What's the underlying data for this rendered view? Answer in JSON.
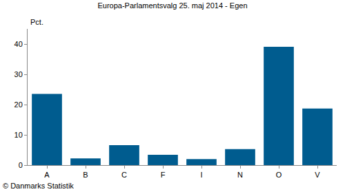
{
  "chart_data": {
    "type": "bar",
    "title": "Europa-Parlamentsvalg 25. maj 2014 - Egen",
    "y_label": "Pct.",
    "categories": [
      "A",
      "B",
      "C",
      "F",
      "I",
      "N",
      "O",
      "V"
    ],
    "values": [
      23.5,
      2.2,
      6.6,
      3.4,
      2.0,
      5.3,
      39.1,
      18.7
    ],
    "color": "#005c8f",
    "ylim": [
      0,
      45
    ],
    "yticks": [
      0,
      10,
      20,
      30,
      40
    ],
    "grid": false,
    "annotations": [
      "© Danmarks Statistik"
    ]
  }
}
